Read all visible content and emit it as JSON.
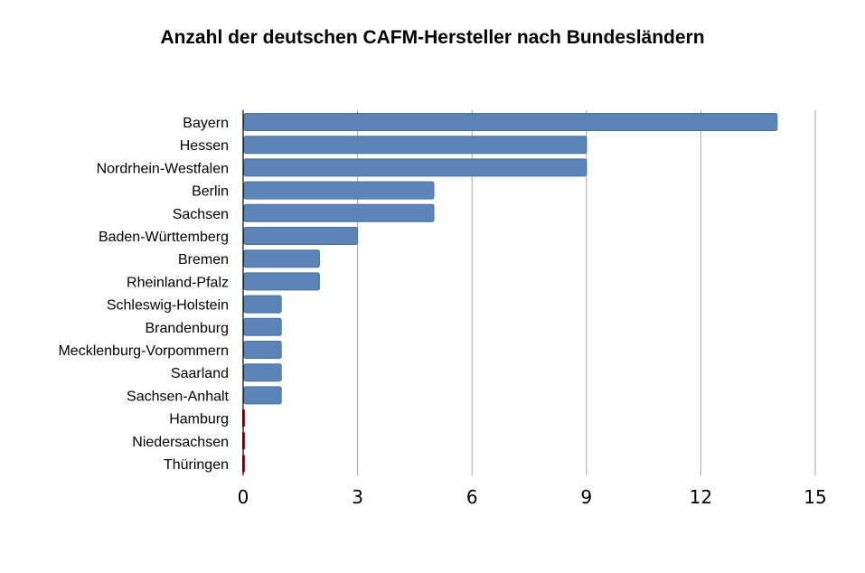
{
  "chart_data": {
    "type": "bar",
    "orientation": "horizontal",
    "title": "Anzahl der deutschen CAFM-Hersteller nach Bundesländern",
    "xlabel": "",
    "ylabel": "",
    "categories": [
      "Bayern",
      "Hessen",
      "Nordrhein-Westfalen",
      "Berlin",
      "Sachsen",
      "Baden-Württemberg",
      "Bremen",
      "Rheinland-Pfalz",
      "Schleswig-Holstein",
      "Brandenburg",
      "Mecklenburg-Vorpommern",
      "Saarland",
      "Sachsen-Anhalt",
      "Hamburg",
      "Niedersachsen",
      "Thüringen"
    ],
    "values": [
      14,
      9,
      9,
      5,
      5,
      3,
      2,
      2,
      1,
      1,
      1,
      1,
      1,
      0,
      0,
      0
    ],
    "xlim": [
      0,
      15
    ],
    "xticks": [
      0,
      3,
      6,
      9,
      12,
      15
    ],
    "grid": true,
    "legend": "none",
    "colors": {
      "bar": "#5b84b8",
      "bar_edge": "#4a6f9f",
      "zero_marker": "#b01c2e",
      "grid": "#a6a6a6"
    }
  }
}
